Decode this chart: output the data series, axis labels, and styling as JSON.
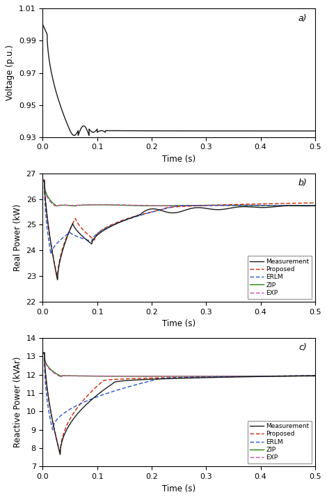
{
  "fig_width": 4.7,
  "fig_height": 7.16,
  "dpi": 100,
  "subplot_labels": [
    "a)",
    "b)",
    "c)"
  ],
  "voltage": {
    "ylim": [
      0.93,
      1.01
    ],
    "yticks": [
      0.93,
      0.95,
      0.97,
      0.99,
      1.01
    ],
    "ylabel": "Voltage (p.u.)",
    "xlabel": "Time (s)"
  },
  "real_power": {
    "ylim": [
      22,
      27
    ],
    "yticks": [
      22,
      23,
      24,
      25,
      26,
      27
    ],
    "ylabel": "Real Power (kW)",
    "xlabel": "Time (s)"
  },
  "reactive_power": {
    "ylim": [
      7,
      14
    ],
    "yticks": [
      7,
      8,
      9,
      10,
      11,
      12,
      13,
      14
    ],
    "ylabel": "Reactive Power (kVAr)",
    "xlabel": "Time (s)"
  },
  "colors": {
    "measurement": "#1a1a1a",
    "proposed": "#cc2200",
    "erlm": "#2255cc",
    "zip": "#228800",
    "exp": "#cc44aa"
  },
  "xlim": [
    0,
    0.5
  ],
  "xticks": [
    0,
    0.1,
    0.2,
    0.3,
    0.4,
    0.5
  ]
}
